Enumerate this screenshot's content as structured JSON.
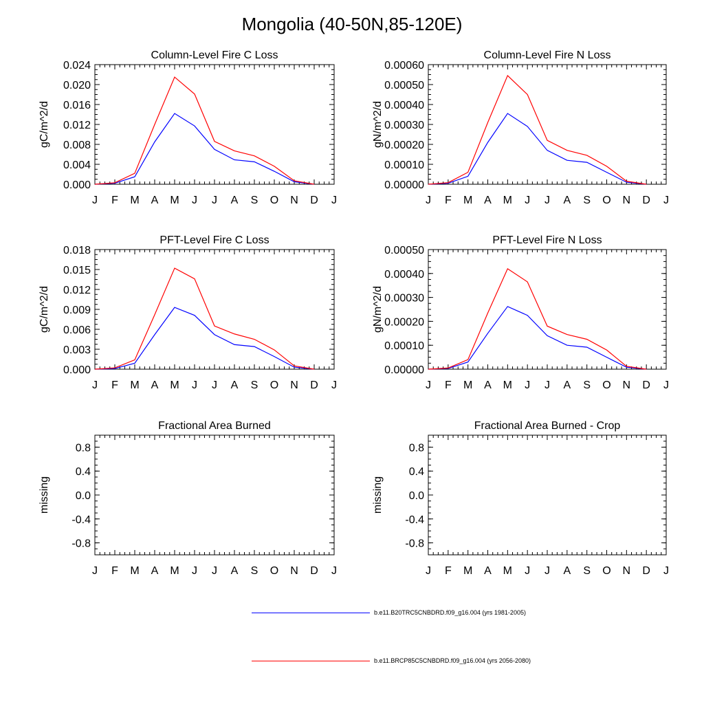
{
  "title": "Mongolia (40-50N,85-120E)",
  "months": [
    "J",
    "F",
    "M",
    "A",
    "M",
    "J",
    "J",
    "A",
    "S",
    "O",
    "N",
    "D",
    "J"
  ],
  "colors": {
    "baseline": "#0000ff",
    "future": "#ff0000",
    "axis": "#000000"
  },
  "legend": [
    {
      "label": "b.e11.B20TRC5CNBDRD.f09_g16.004 (yrs 1981-2005)",
      "color": "#0000ff"
    },
    {
      "label": "b.e11.BRCP85C5CNBDRD.f09_g16.004 (yrs 2056-2080)",
      "color": "#ff0000"
    }
  ],
  "chart_data": [
    {
      "type": "line",
      "title": "Column-Level Fire C Loss",
      "ylabel": "gC/m^2/d",
      "ylim": [
        0,
        0.024
      ],
      "yticks": [
        "0.000",
        "0.004",
        "0.008",
        "0.012",
        "0.016",
        "0.020",
        "0.024"
      ],
      "series": [
        {
          "name": "b.e11.B20TRC5CNBDRD.f09_g16.004 (yrs 1981-2005)",
          "values": [
            0.0,
            0.0002,
            0.0015,
            0.0085,
            0.0142,
            0.0117,
            0.007,
            0.0049,
            0.0045,
            0.0026,
            0.0005,
            0.0
          ]
        },
        {
          "name": "b.e11.BRCP85C5CNBDRD.f09_g16.004 (yrs 2056-2080)",
          "values": [
            0.0,
            0.0003,
            0.0022,
            0.012,
            0.0215,
            0.0181,
            0.0086,
            0.0067,
            0.0057,
            0.0036,
            0.0007,
            0.0
          ]
        }
      ]
    },
    {
      "type": "line",
      "title": "Column-Level Fire N Loss",
      "ylabel": "gN/m^2/d",
      "ylim": [
        0,
        0.0006
      ],
      "yticks": [
        "0.00000",
        "0.00010",
        "0.00020",
        "0.00030",
        "0.00040",
        "0.00050",
        "0.00060"
      ],
      "series": [
        {
          "name": "b.e11.B20TRC5CNBDRD.f09_g16.004 (yrs 1981-2005)",
          "values": [
            0.0,
            5e-06,
            4e-05,
            0.00021,
            0.000355,
            0.00029,
            0.00017,
            0.00012,
            0.00011,
            6e-05,
            1e-05,
            0.0
          ]
        },
        {
          "name": "b.e11.BRCP85C5CNBDRD.f09_g16.004 (yrs 2056-2080)",
          "values": [
            0.0,
            8e-06,
            6e-05,
            0.00031,
            0.000545,
            0.00045,
            0.00022,
            0.00017,
            0.000145,
            9e-05,
            1.5e-05,
            0.0
          ]
        }
      ]
    },
    {
      "type": "line",
      "title": "PFT-Level Fire C Loss",
      "ylabel": "gC/m^2/d",
      "ylim": [
        0,
        0.018
      ],
      "yticks": [
        "0.000",
        "0.003",
        "0.006",
        "0.009",
        "0.012",
        "0.015",
        "0.018"
      ],
      "series": [
        {
          "name": "b.e11.B20TRC5CNBDRD.f09_g16.004 (yrs 1981-2005)",
          "values": [
            0.0,
            0.0001,
            0.0009,
            0.0052,
            0.0093,
            0.0081,
            0.0052,
            0.0037,
            0.0034,
            0.0019,
            0.0003,
            0.0
          ]
        },
        {
          "name": "b.e11.BRCP85C5CNBDRD.f09_g16.004 (yrs 2056-2080)",
          "values": [
            0.0,
            0.0002,
            0.0014,
            0.0082,
            0.0152,
            0.0136,
            0.0065,
            0.0053,
            0.0045,
            0.0029,
            0.0005,
            0.0
          ]
        }
      ]
    },
    {
      "type": "line",
      "title": "PFT-Level Fire N Loss",
      "ylabel": "gN/m^2/d",
      "ylim": [
        0,
        0.0005
      ],
      "yticks": [
        "0.00000",
        "0.00010",
        "0.00020",
        "0.00030",
        "0.00040",
        "0.00050"
      ],
      "series": [
        {
          "name": "b.e11.B20TRC5CNBDRD.f09_g16.004 (yrs 1981-2005)",
          "values": [
            0.0,
            3e-06,
            3e-05,
            0.00015,
            0.000262,
            0.000225,
            0.00014,
            0.0001,
            9.2e-05,
            5e-05,
            8e-06,
            0.0
          ]
        },
        {
          "name": "b.e11.BRCP85C5CNBDRD.f09_g16.004 (yrs 2056-2080)",
          "values": [
            0.0,
            5e-06,
            4e-05,
            0.000235,
            0.00042,
            0.000365,
            0.00018,
            0.000145,
            0.000125,
            8e-05,
            1.2e-05,
            0.0
          ]
        }
      ]
    },
    {
      "type": "line",
      "title": "Fractional Area Burned",
      "ylabel": "missing",
      "ylim": [
        -1,
        1
      ],
      "yticks": [
        "-0.8",
        "-0.4",
        "0.0",
        "0.4",
        "0.8"
      ],
      "series": []
    },
    {
      "type": "line",
      "title": "Fractional Area Burned - Crop",
      "ylabel": "missing",
      "ylim": [
        -1,
        1
      ],
      "yticks": [
        "-0.8",
        "-0.4",
        "0.0",
        "0.4",
        "0.8"
      ],
      "series": []
    }
  ]
}
